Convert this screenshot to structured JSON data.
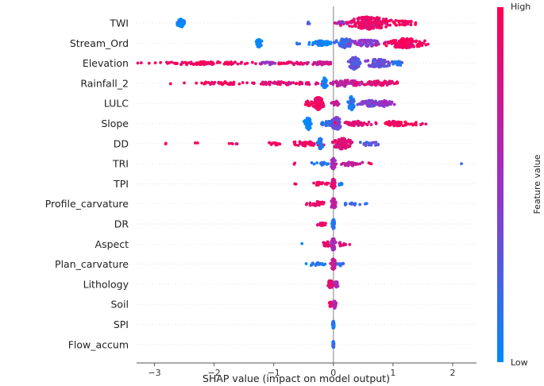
{
  "chart_data": {
    "type": "scatter",
    "subtype": "shap-beeswarm",
    "xlabel": "SHAP value (impact on model output)",
    "xlim": [
      -3.3,
      2.4
    ],
    "xticks": [
      -3,
      -2,
      -1,
      0,
      1,
      2
    ],
    "colorbar": {
      "title": "Feature value",
      "high_label": "High",
      "low_label": "Low",
      "low_color": "#008bfb",
      "high_color": "#ff0052"
    },
    "grid": false,
    "features": [
      {
        "name": "TWI",
        "clusters": [
          {
            "x": -2.55,
            "spread": 0.06,
            "count": 60,
            "width": 5,
            "value": 0.0
          },
          {
            "x": -0.45,
            "spread": 0.06,
            "count": 3,
            "width": 2,
            "value": 0.3
          },
          {
            "x": 0.15,
            "spread": 0.15,
            "count": 15,
            "width": 2,
            "value": 0.5
          },
          {
            "x": 0.6,
            "spread": 0.3,
            "count": 200,
            "width": 8,
            "value": 0.9
          },
          {
            "x": 1.2,
            "spread": 0.2,
            "count": 30,
            "width": 3,
            "value": 0.95
          }
        ]
      },
      {
        "name": "Stream_Ord",
        "clusters": [
          {
            "x": -1.25,
            "spread": 0.04,
            "count": 40,
            "width": 5,
            "value": 0.0
          },
          {
            "x": -0.6,
            "spread": 0.05,
            "count": 3,
            "width": 2,
            "value": 0.1
          },
          {
            "x": -0.2,
            "spread": 0.18,
            "count": 60,
            "width": 3,
            "value": 0.05
          },
          {
            "x": 0.2,
            "spread": 0.12,
            "count": 60,
            "width": 6,
            "value": 0.2
          },
          {
            "x": 0.55,
            "spread": 0.25,
            "count": 80,
            "width": 4,
            "value": 0.45
          },
          {
            "x": 1.2,
            "spread": 0.3,
            "count": 140,
            "width": 6,
            "value": 0.95
          }
        ]
      },
      {
        "name": "Elevation",
        "clusters": [
          {
            "x": -2.2,
            "spread": 0.75,
            "count": 90,
            "width": 2,
            "value": 0.95
          },
          {
            "x": -1.1,
            "spread": 0.1,
            "count": 20,
            "width": 2,
            "value": 0.5
          },
          {
            "x": -0.7,
            "spread": 0.2,
            "count": 30,
            "width": 2,
            "value": 0.9
          },
          {
            "x": -0.2,
            "spread": 0.2,
            "count": 40,
            "width": 2,
            "value": 0.7
          },
          {
            "x": 0.35,
            "spread": 0.08,
            "count": 80,
            "width": 8,
            "value": 0.3
          },
          {
            "x": 0.75,
            "spread": 0.2,
            "count": 80,
            "width": 5,
            "value": 0.35
          },
          {
            "x": 1.1,
            "spread": 0.08,
            "count": 15,
            "width": 3,
            "value": 0.15
          }
        ]
      },
      {
        "name": "Rainfall_2",
        "clusters": [
          {
            "x": -1.8,
            "spread": 0.45,
            "count": 40,
            "width": 2,
            "value": 0.95
          },
          {
            "x": -0.8,
            "spread": 0.55,
            "count": 60,
            "width": 2,
            "value": 0.85
          },
          {
            "x": -0.15,
            "spread": 0.03,
            "count": 40,
            "width": 7,
            "value": 0.05
          },
          {
            "x": 0.2,
            "spread": 0.25,
            "count": 60,
            "width": 4,
            "value": 0.7
          },
          {
            "x": 0.8,
            "spread": 0.3,
            "count": 60,
            "width": 3,
            "value": 0.85
          }
        ]
      },
      {
        "name": "LULC",
        "clusters": [
          {
            "x": -0.42,
            "spread": 0.06,
            "count": 20,
            "width": 3,
            "value": 0.95
          },
          {
            "x": -0.25,
            "spread": 0.07,
            "count": 80,
            "width": 8,
            "value": 0.92
          },
          {
            "x": 0.05,
            "spread": 0.05,
            "count": 20,
            "width": 3,
            "value": 0.7
          },
          {
            "x": 0.3,
            "spread": 0.04,
            "count": 60,
            "width": 9,
            "value": 0.1
          },
          {
            "x": 0.6,
            "spread": 0.15,
            "count": 60,
            "width": 4,
            "value": 0.4
          },
          {
            "x": 0.85,
            "spread": 0.12,
            "count": 40,
            "width": 4,
            "value": 0.5
          }
        ]
      },
      {
        "name": "Slope",
        "clusters": [
          {
            "x": -0.42,
            "spread": 0.04,
            "count": 60,
            "width": 8,
            "value": 0.0
          },
          {
            "x": -0.1,
            "spread": 0.1,
            "count": 30,
            "width": 3,
            "value": 0.15
          },
          {
            "x": 0.05,
            "spread": 0.07,
            "count": 100,
            "width": 8,
            "value": 0.4
          },
          {
            "x": 0.4,
            "spread": 0.2,
            "count": 60,
            "width": 3,
            "value": 0.85
          },
          {
            "x": 1.1,
            "spread": 0.3,
            "count": 50,
            "width": 3,
            "value": 0.95
          }
        ]
      },
      {
        "name": "DD",
        "clusters": [
          {
            "x": -2.8,
            "spread": 0.04,
            "count": 2,
            "width": 1,
            "value": 0.95
          },
          {
            "x": -2.3,
            "spread": 0.04,
            "count": 2,
            "width": 1,
            "value": 0.95
          },
          {
            "x": -1.7,
            "spread": 0.1,
            "count": 5,
            "width": 1,
            "value": 0.9
          },
          {
            "x": -1.0,
            "spread": 0.12,
            "count": 12,
            "width": 2,
            "value": 0.9
          },
          {
            "x": -0.45,
            "spread": 0.25,
            "count": 40,
            "width": 3,
            "value": 0.9
          },
          {
            "x": -0.22,
            "spread": 0.03,
            "count": 40,
            "width": 7,
            "value": 0.05
          },
          {
            "x": 0.15,
            "spread": 0.12,
            "count": 90,
            "width": 7,
            "value": 0.85
          },
          {
            "x": 0.6,
            "spread": 0.15,
            "count": 20,
            "width": 3,
            "value": 0.3
          }
        ]
      },
      {
        "name": "TRI",
        "clusters": [
          {
            "x": -0.65,
            "spread": 0.03,
            "count": 2,
            "width": 1,
            "value": 0.9
          },
          {
            "x": -0.2,
            "spread": 0.15,
            "count": 15,
            "width": 2,
            "value": 0.1
          },
          {
            "x": 0.0,
            "spread": 0.03,
            "count": 40,
            "width": 7,
            "value": 0.6
          },
          {
            "x": 0.3,
            "spread": 0.15,
            "count": 30,
            "width": 3,
            "value": 0.7
          },
          {
            "x": 0.6,
            "spread": 0.05,
            "count": 3,
            "width": 1,
            "value": 0.9
          },
          {
            "x": 2.12,
            "spread": 0.02,
            "count": 1,
            "width": 1,
            "value": 0.1
          }
        ]
      },
      {
        "name": "TPI",
        "clusters": [
          {
            "x": -0.65,
            "spread": 0.04,
            "count": 2,
            "width": 1,
            "value": 0.95
          },
          {
            "x": -0.25,
            "spread": 0.15,
            "count": 20,
            "width": 2,
            "value": 0.9
          },
          {
            "x": 0.0,
            "spread": 0.03,
            "count": 50,
            "width": 6,
            "value": 0.85
          },
          {
            "x": 0.12,
            "spread": 0.05,
            "count": 10,
            "width": 2,
            "value": 0.1
          }
        ]
      },
      {
        "name": "Profile_carvature",
        "clusters": [
          {
            "x": -0.3,
            "spread": 0.15,
            "count": 30,
            "width": 3,
            "value": 0.9
          },
          {
            "x": 0.0,
            "spread": 0.03,
            "count": 60,
            "width": 7,
            "value": 0.7
          },
          {
            "x": 0.3,
            "spread": 0.12,
            "count": 15,
            "width": 2,
            "value": 0.2
          },
          {
            "x": 0.55,
            "spread": 0.02,
            "count": 2,
            "width": 1,
            "value": 0.15
          }
        ]
      },
      {
        "name": "DR",
        "clusters": [
          {
            "x": -0.2,
            "spread": 0.08,
            "count": 15,
            "width": 2,
            "value": 0.9
          },
          {
            "x": 0.0,
            "spread": 0.02,
            "count": 50,
            "width": 6,
            "value": 0.1
          }
        ]
      },
      {
        "name": "Aspect",
        "clusters": [
          {
            "x": -0.52,
            "spread": 0.02,
            "count": 1,
            "width": 1,
            "value": 0.1
          },
          {
            "x": -0.1,
            "spread": 0.08,
            "count": 20,
            "width": 3,
            "value": 0.85
          },
          {
            "x": 0.0,
            "spread": 0.03,
            "count": 60,
            "width": 8,
            "value": 0.6
          },
          {
            "x": 0.15,
            "spread": 0.06,
            "count": 12,
            "width": 3,
            "value": 0.85
          },
          {
            "x": 0.25,
            "spread": 0.02,
            "count": 1,
            "width": 1,
            "value": 0.95
          }
        ]
      },
      {
        "name": "Plan_carvature",
        "clusters": [
          {
            "x": -0.3,
            "spread": 0.12,
            "count": 20,
            "width": 2,
            "value": 0.1
          },
          {
            "x": 0.0,
            "spread": 0.03,
            "count": 50,
            "width": 7,
            "value": 0.75
          },
          {
            "x": 0.12,
            "spread": 0.06,
            "count": 10,
            "width": 2,
            "value": 0.2
          }
        ]
      },
      {
        "name": "Lithology",
        "clusters": [
          {
            "x": -0.05,
            "spread": 0.03,
            "count": 30,
            "width": 6,
            "value": 0.85
          },
          {
            "x": 0.05,
            "spread": 0.03,
            "count": 20,
            "width": 4,
            "value": 0.6
          }
        ]
      },
      {
        "name": "Soil",
        "clusters": [
          {
            "x": -0.05,
            "spread": 0.02,
            "count": 20,
            "width": 3,
            "value": 0.9
          },
          {
            "x": 0.02,
            "spread": 0.02,
            "count": 30,
            "width": 5,
            "value": 0.6
          }
        ]
      },
      {
        "name": "SPI",
        "clusters": [
          {
            "x": 0.0,
            "spread": 0.01,
            "count": 40,
            "width": 5,
            "value": 0.1
          }
        ]
      },
      {
        "name": "Flow_accum",
        "clusters": [
          {
            "x": 0.0,
            "spread": 0.01,
            "count": 35,
            "width": 4,
            "value": 0.15
          }
        ]
      }
    ]
  }
}
